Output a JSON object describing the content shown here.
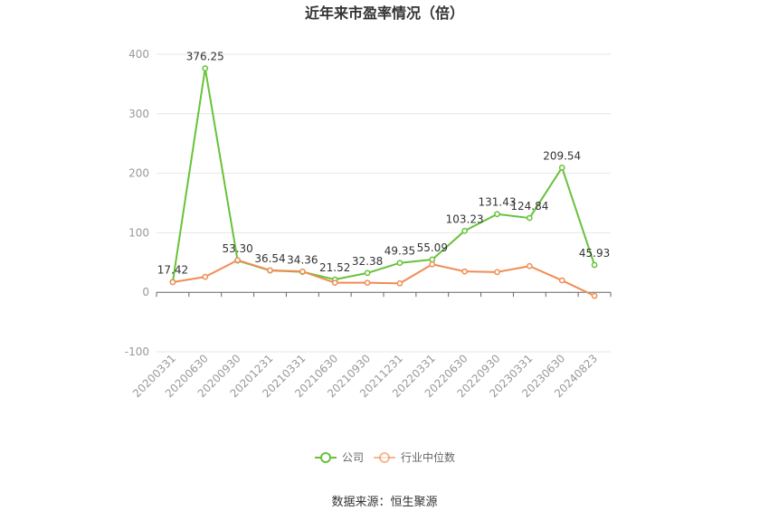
{
  "chart_data": {
    "type": "line",
    "title": "近年来市盈率情况（倍）",
    "xlabel": "",
    "ylabel": "",
    "ylim": [
      -100,
      400
    ],
    "yticks": [
      -100,
      0,
      100,
      200,
      300,
      400
    ],
    "grid": true,
    "legend_position": "bottom",
    "categories": [
      "20200331",
      "20200630",
      "20200930",
      "20201231",
      "20210331",
      "20210630",
      "20210930",
      "20211231",
      "20220331",
      "20220630",
      "20220930",
      "20230331",
      "20230630",
      "20240823"
    ],
    "series": [
      {
        "name": "公司",
        "color": "#67c23a",
        "values": [
          17.42,
          376.25,
          53.3,
          36.54,
          34.36,
          21.52,
          32.38,
          49.35,
          55.09,
          103.23,
          131.43,
          124.84,
          209.54,
          45.93
        ],
        "labels": [
          "17.42",
          "376.25",
          "53.30",
          "36.54",
          "34.36",
          "21.52",
          "32.38",
          "49.35",
          "55.09",
          "103.23",
          "131.43",
          "124.84",
          "209.54",
          "45.93"
        ]
      },
      {
        "name": "行业中位数",
        "color": "#f08c52",
        "values": [
          17,
          26,
          54,
          37,
          35,
          16,
          16,
          15,
          47,
          35,
          34,
          44,
          20,
          -6
        ]
      }
    ]
  },
  "source": "数据来源：恒生聚源"
}
